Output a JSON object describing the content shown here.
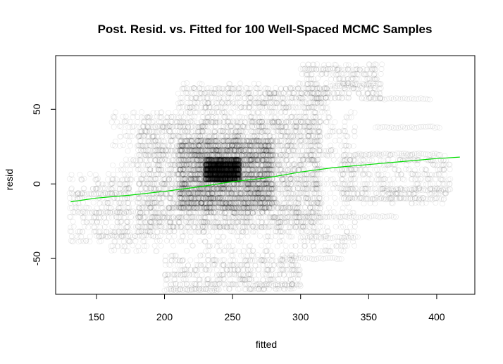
{
  "chart_data": {
    "type": "scatter",
    "title": "Post. Resid. vs. Fitted for 100 Well-Spaced MCMC Samples",
    "xlabel": "fitted",
    "ylabel": "resid",
    "xlim": [
      120,
      428
    ],
    "ylim": [
      -74,
      86
    ],
    "x_ticks": [
      150,
      200,
      250,
      300,
      350,
      400
    ],
    "y_ticks": [
      -50,
      0,
      50
    ],
    "grid": false,
    "point_color": "#000000",
    "smooth_color": "#00dd00",
    "point_cloud": [
      {
        "fitted_range": [
          130,
          420
        ],
        "resid_range": [
          -72,
          80
        ]
      }
    ],
    "smooth_line": {
      "x": [
        131,
        150,
        175,
        200,
        225,
        250,
        275,
        300,
        325,
        350,
        375,
        400,
        417
      ],
      "y": [
        -12,
        -9.5,
        -7.5,
        -5,
        -2,
        1.5,
        4,
        8,
        11,
        13,
        15,
        17,
        18
      ]
    },
    "point_clusters": [
      {
        "x": [
          230,
          255
        ],
        "y": [
          2,
          16
        ],
        "count": 3200
      },
      {
        "x": [
          210,
          280
        ],
        "y": [
          -18,
          30
        ],
        "count": 2800
      },
      {
        "x": [
          180,
          315
        ],
        "y": [
          -32,
          44
        ],
        "count": 2600
      },
      {
        "x": [
          160,
          340
        ],
        "y": [
          -46,
          48
        ],
        "count": 1400
      },
      {
        "x": [
          200,
          300
        ],
        "y": [
          -72,
          -48
        ],
        "count": 500
      },
      {
        "x": [
          210,
          320
        ],
        "y": [
          48,
          66
        ],
        "count": 500
      },
      {
        "x": [
          300,
          360
        ],
        "y": [
          56,
          80
        ],
        "count": 260
      },
      {
        "x": [
          330,
          410
        ],
        "y": [
          -12,
          20
        ],
        "count": 420
      },
      {
        "x": [
          130,
          175
        ],
        "y": [
          -40,
          6
        ],
        "count": 260
      }
    ],
    "banded_rows": [
      {
        "x": [
          300,
          330
        ],
        "y": 77
      },
      {
        "x": [
          322,
          355
        ],
        "y": 66
      },
      {
        "x": [
          345,
          395
        ],
        "y": 57
      },
      {
        "x": [
          355,
          402
        ],
        "y": 38
      },
      {
        "x": [
          340,
          400
        ],
        "y": 20
      },
      {
        "x": [
          360,
          410
        ],
        "y": -4
      },
      {
        "x": [
          330,
          405
        ],
        "y": -10
      },
      {
        "x": [
          300,
          370
        ],
        "y": -22
      },
      {
        "x": [
          300,
          342
        ],
        "y": -36
      },
      {
        "x": [
          285,
          330
        ],
        "y": -50
      },
      {
        "x": [
          265,
          300
        ],
        "y": -68
      },
      {
        "x": [
          200,
          240
        ],
        "y": -71
      },
      {
        "x": [
          133,
          175
        ],
        "y": -7
      },
      {
        "x": [
          140,
          182
        ],
        "y": -19
      },
      {
        "x": [
          150,
          195
        ],
        "y": -35
      }
    ]
  }
}
